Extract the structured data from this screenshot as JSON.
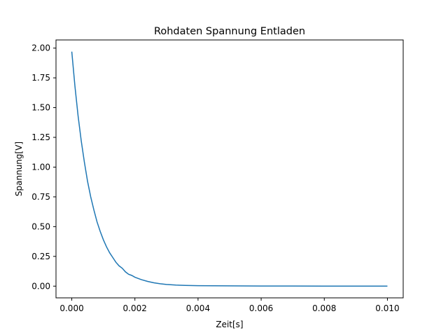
{
  "chart_data": {
    "type": "line",
    "title": "Rohdaten Spannung Entladen",
    "xlabel": "Zeit[s]",
    "ylabel": "Spannung[V]",
    "xlim": [
      -0.0005,
      0.0105
    ],
    "ylim": [
      -0.0985,
      2.0685
    ],
    "grid": false,
    "x_ticks": [
      "0.000",
      "0.002",
      "0.004",
      "0.006",
      "0.008",
      "0.010"
    ],
    "x_tick_values": [
      0.0,
      0.002,
      0.004,
      0.006,
      0.008,
      0.01
    ],
    "y_ticks": [
      "0.00",
      "0.25",
      "0.50",
      "0.75",
      "1.00",
      "1.25",
      "1.50",
      "1.75",
      "2.00"
    ],
    "y_tick_values": [
      0.0,
      0.25,
      0.5,
      0.75,
      1.0,
      1.25,
      1.5,
      1.75,
      2.0
    ],
    "series": [
      {
        "color": "#1f77b4",
        "x": [
          0.0,
          0.0001,
          0.0002,
          0.0003,
          0.0004,
          0.0005,
          0.0006,
          0.0007,
          0.0008,
          0.0009,
          0.001,
          0.0011,
          0.0012,
          0.0013,
          0.0014,
          0.0015,
          0.0016,
          0.0017,
          0.0018,
          0.0019,
          0.002,
          0.0022,
          0.0024,
          0.0026,
          0.0028,
          0.003,
          0.0033,
          0.0036,
          0.004,
          0.0045,
          0.005,
          0.006,
          0.007,
          0.008,
          0.009,
          0.01
        ],
        "y": [
          1.97,
          1.68,
          1.43,
          1.22,
          1.04,
          0.88,
          0.75,
          0.64,
          0.54,
          0.46,
          0.39,
          0.33,
          0.28,
          0.24,
          0.2,
          0.17,
          0.15,
          0.12,
          0.1,
          0.09,
          0.075,
          0.055,
          0.04,
          0.028,
          0.02,
          0.014,
          0.009,
          0.006,
          0.004,
          0.003,
          0.002,
          0.001,
          0.001,
          0.0,
          0.0,
          0.0
        ]
      }
    ]
  }
}
